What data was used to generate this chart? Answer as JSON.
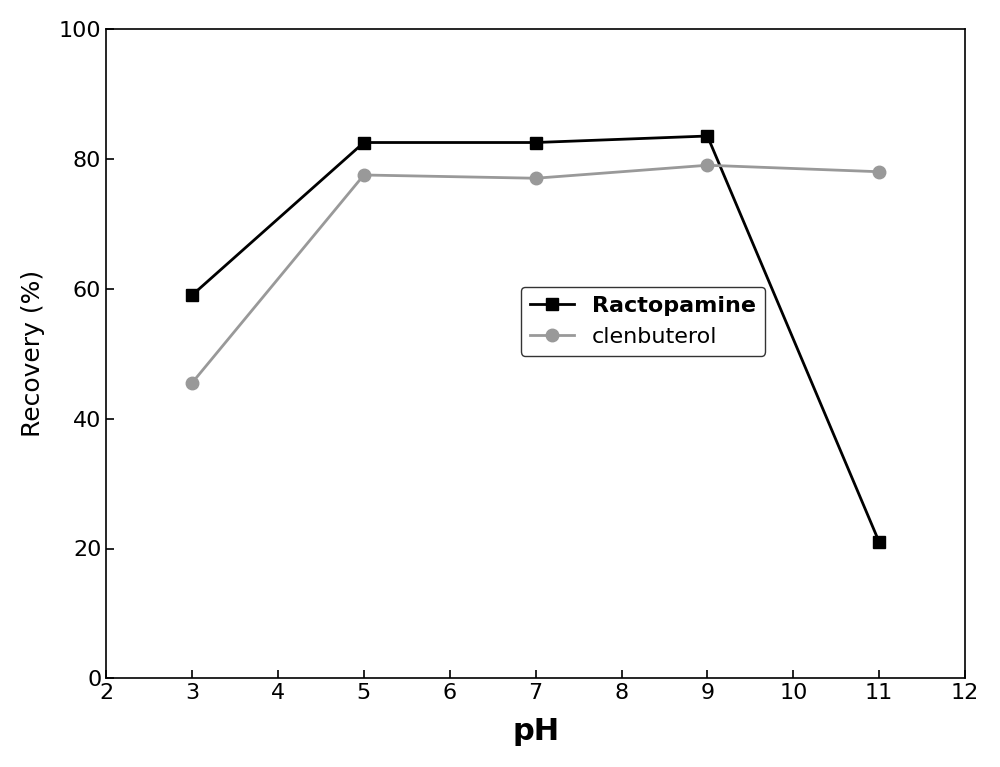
{
  "ractopamine_x": [
    3,
    5,
    7,
    9,
    11
  ],
  "ractopamine_y": [
    59,
    82.5,
    82.5,
    83.5,
    21
  ],
  "clenbuterol_x": [
    3,
    5,
    7,
    9,
    11
  ],
  "clenbuterol_y": [
    45.5,
    77.5,
    77,
    79,
    78
  ],
  "ractopamine_color": "#000000",
  "clenbuterol_color": "#999999",
  "xlabel": "pH",
  "ylabel": "Recovery (%)",
  "xlim": [
    2,
    12
  ],
  "ylim": [
    0,
    100
  ],
  "xticks": [
    2,
    3,
    4,
    5,
    6,
    7,
    8,
    9,
    10,
    11,
    12
  ],
  "yticks": [
    0,
    20,
    40,
    60,
    80,
    100
  ],
  "legend_labels": [
    "Ractopamine",
    "clenbuterol"
  ],
  "xlabel_fontsize": 22,
  "ylabel_fontsize": 18,
  "tick_fontsize": 16,
  "legend_fontsize": 16,
  "line_width": 2.0,
  "marker_size": 9,
  "background_color": "#ffffff"
}
